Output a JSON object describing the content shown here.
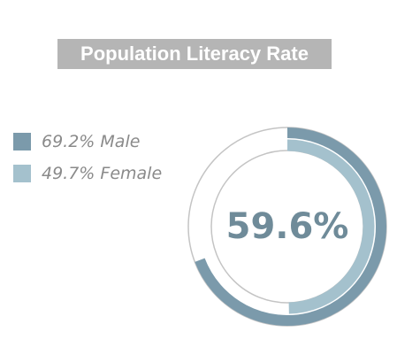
{
  "chart_data": {
    "type": "radial",
    "title": "Population Literacy Rate",
    "center_label": "59.6%",
    "max": 100,
    "series": [
      {
        "name": "Male",
        "color": "#7b9aab",
        "values": [
          69.2
        ],
        "value_labels": [
          "69.2%"
        ]
      },
      {
        "name": "Female",
        "color": "#a4c1cd",
        "values": [
          49.7
        ],
        "value_labels": [
          "49.7%"
        ]
      }
    ]
  }
}
